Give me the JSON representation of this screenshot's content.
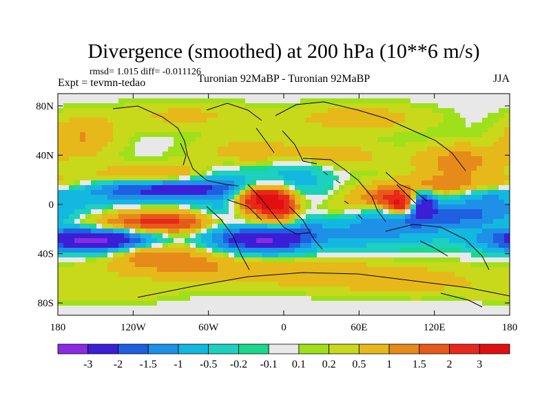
{
  "chart_data": {
    "type": "heatmap",
    "title": "Divergence (smoothed) at 200 hPa (10**6 m/s)",
    "stats_line": "rmsd= 1.015 diff= -0.011126",
    "left_label": "Expt = tevmn-tedao",
    "center_label": "Turonian  92MaBP - Turonian  92MaBP",
    "right_label": "JJA",
    "xlim": [
      -180,
      180
    ],
    "ylim": [
      -90,
      90
    ],
    "x_ticks": [
      {
        "value": -180,
        "label": "180"
      },
      {
        "value": -120,
        "label": "120W"
      },
      {
        "value": -60,
        "label": "60W"
      },
      {
        "value": 0,
        "label": "0"
      },
      {
        "value": 60,
        "label": "60E"
      },
      {
        "value": 120,
        "label": "120E"
      },
      {
        "value": 180,
        "label": "180"
      }
    ],
    "y_ticks": [
      {
        "value": 80,
        "label": "80N"
      },
      {
        "value": 40,
        "label": "40N"
      },
      {
        "value": 0,
        "label": "0"
      },
      {
        "value": -40,
        "label": "40S"
      },
      {
        "value": -80,
        "label": "80S"
      }
    ],
    "colorbar": {
      "labels": [
        "-3",
        "-2",
        "-1.5",
        "-1",
        "-0.5",
        "-0.2",
        "-0.1",
        "0.1",
        "0.2",
        "0.5",
        "1",
        "1.5",
        "2",
        "3"
      ],
      "colors": [
        "#8a2be2",
        "#3a1fd6",
        "#1f5fe0",
        "#1e90e8",
        "#13b8e0",
        "#1ed0c0",
        "#19d98a",
        "#e8e8e8",
        "#9ee01a",
        "#c8d81a",
        "#e6b81a",
        "#e68a1a",
        "#e65a1a",
        "#e8281a",
        "#e01010"
      ]
    },
    "levels": [
      -3,
      -2,
      -1.5,
      -1,
      -0.5,
      -0.2,
      -0.1,
      0.1,
      0.2,
      0.5,
      1,
      1.5,
      2,
      3
    ],
    "features": [
      {
        "lon": -100,
        "lat": -15,
        "amp": 2.6,
        "slon": 60,
        "slat": 7
      },
      {
        "lon": -100,
        "lat": 12,
        "amp": -2.4,
        "slon": 55,
        "slat": 6
      },
      {
        "lon": -100,
        "lat": 25,
        "amp": 1.1,
        "slon": 35,
        "slat": 6
      },
      {
        "lon": 150,
        "lat": -10,
        "amp": -1.8,
        "slon": 50,
        "slat": 8
      },
      {
        "lon": 150,
        "lat": 15,
        "amp": 1.8,
        "slon": 45,
        "slat": 6
      },
      {
        "lon": -160,
        "lat": -28,
        "amp": -2.6,
        "slon": 30,
        "slat": 7
      },
      {
        "lon": -130,
        "lat": -30,
        "amp": -1.6,
        "slon": 30,
        "slat": 8
      },
      {
        "lon": -110,
        "lat": -38,
        "amp": 1.2,
        "slon": 25,
        "slat": 6
      },
      {
        "lon": -90,
        "lat": -45,
        "amp": 0.9,
        "slon": 40,
        "slat": 8
      },
      {
        "lon": -22,
        "lat": 5,
        "amp": 3.2,
        "slon": 12,
        "slat": 8
      },
      {
        "lon": -3,
        "lat": 0,
        "amp": 3.0,
        "slon": 10,
        "slat": 10
      },
      {
        "lon": -15,
        "lat": -28,
        "amp": -3.0,
        "slon": 24,
        "slat": 8
      },
      {
        "lon": -50,
        "lat": -15,
        "amp": -1.5,
        "slon": 18,
        "slat": 12
      },
      {
        "lon": -40,
        "lat": 25,
        "amp": -0.8,
        "slon": 25,
        "slat": 10
      },
      {
        "lon": 20,
        "lat": -15,
        "amp": -0.7,
        "slon": 20,
        "slat": 10
      },
      {
        "lon": 40,
        "lat": -8,
        "amp": 0.8,
        "slon": 20,
        "slat": 8
      },
      {
        "lon": 80,
        "lat": 5,
        "amp": 1.6,
        "slon": 20,
        "slat": 6
      },
      {
        "lon": 95,
        "lat": 0,
        "amp": 2.8,
        "slon": 9,
        "slat": 6
      },
      {
        "lon": 110,
        "lat": 2,
        "amp": -3.0,
        "slon": 8,
        "slat": 7
      },
      {
        "lon": 70,
        "lat": -20,
        "amp": -1.2,
        "slon": 40,
        "slat": 10
      },
      {
        "lon": 140,
        "lat": 35,
        "amp": 1.3,
        "slon": 25,
        "slat": 10
      },
      {
        "lon": 160,
        "lat": 10,
        "amp": -1.2,
        "slon": 20,
        "slat": 8
      },
      {
        "lon": -30,
        "lat": 40,
        "amp": 0.9,
        "slon": 30,
        "slat": 10
      },
      {
        "lon": 40,
        "lat": 40,
        "amp": 0.8,
        "slon": 30,
        "slat": 8
      },
      {
        "lon": 10,
        "lat": 25,
        "amp": -0.8,
        "slon": 20,
        "slat": 10
      },
      {
        "lon": -160,
        "lat": 55,
        "amp": 1.0,
        "slon": 20,
        "slat": 12
      },
      {
        "lon": 60,
        "lat": 70,
        "amp": 0.8,
        "slon": 40,
        "slat": 8
      },
      {
        "lon": -80,
        "lat": 72,
        "amp": 0.6,
        "slon": 40,
        "slat": 8
      },
      {
        "lon": 0,
        "lat": -55,
        "amp": 0.8,
        "slon": 90,
        "slat": 8
      },
      {
        "lon": 100,
        "lat": -65,
        "amp": 0.5,
        "slon": 60,
        "slat": 8
      },
      {
        "lon": -140,
        "lat": -72,
        "amp": 0.4,
        "slon": 40,
        "slat": 6
      }
    ]
  }
}
